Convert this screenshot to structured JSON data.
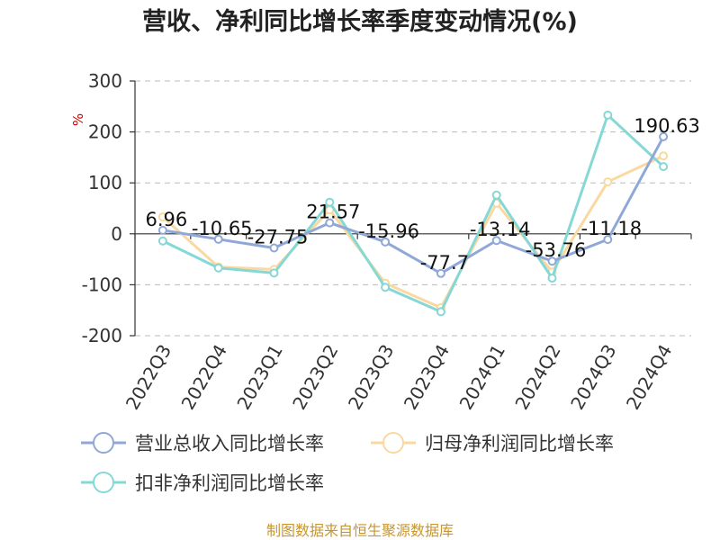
{
  "title": "营收、净利同比增长率季度变动情况(%)",
  "source": "制图数据来自恒生聚源数据库",
  "chart_data": {
    "type": "line",
    "title": "营收、净利同比增长率季度变动情况(%)",
    "ylabel": "%",
    "ylim": [
      -200,
      300
    ],
    "yticks": [
      300,
      200,
      100,
      0,
      -100,
      -200
    ],
    "grid": true,
    "legend_position": "bottom",
    "categories": [
      "2022Q3",
      "2022Q4",
      "2023Q1",
      "2023Q2",
      "2023Q3",
      "2023Q4",
      "2024Q1",
      "2024Q2",
      "2024Q3",
      "2024Q4"
    ],
    "series": [
      {
        "name": "营业总收入同比增长率",
        "color": "#8fa8d8",
        "values": [
          6.96,
          -10.65,
          -27.75,
          21.57,
          -15.96,
          -77.7,
          -13.14,
          -53.76,
          -11.18,
          190.63
        ],
        "labels": [
          "6.96",
          "-10.65",
          "-27.75",
          "21.57",
          "-15.96",
          "-77.7",
          "-13.14",
          "-53.76",
          "-11.18",
          "190.63"
        ]
      },
      {
        "name": "归母净利润同比增长率",
        "color": "#fad9a0",
        "values": [
          33,
          -65,
          -70,
          47,
          -97,
          -145,
          60,
          -75,
          102,
          153
        ]
      },
      {
        "name": "扣非净利润同比增长率",
        "color": "#86d8d6",
        "values": [
          -14,
          -67,
          -77,
          62,
          -105,
          -153,
          76,
          -87,
          233,
          132
        ]
      }
    ]
  }
}
